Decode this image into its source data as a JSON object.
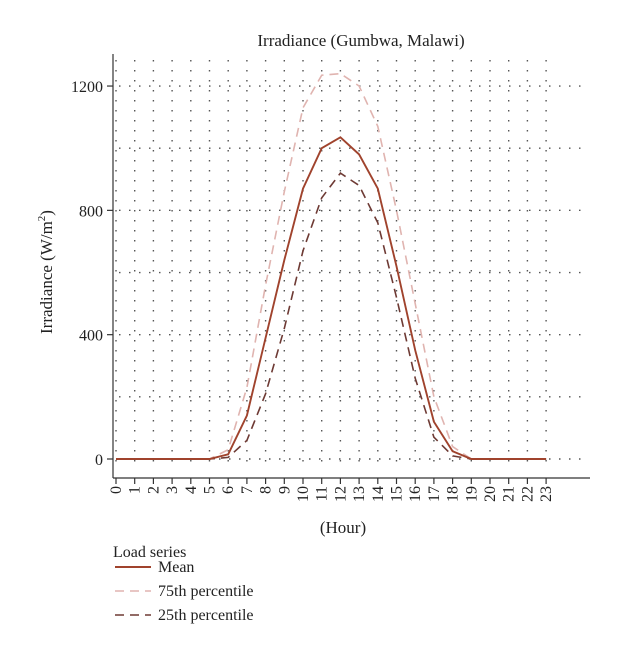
{
  "chart_data": {
    "type": "line",
    "title": "Irradiance (Gumbwa, Malawi)",
    "xlabel": "(Hour)",
    "ylabel": "Irradiance (W/m²)",
    "x": [
      0,
      1,
      2,
      3,
      4,
      5,
      6,
      7,
      8,
      9,
      10,
      11,
      12,
      13,
      14,
      15,
      16,
      17,
      18,
      19,
      20,
      21,
      22,
      23
    ],
    "xlim": [
      0,
      24
    ],
    "ylim": [
      -60,
      1330
    ],
    "yticks": [
      0,
      400,
      800,
      1200
    ],
    "minor_grid_y": [
      200,
      600,
      1000
    ],
    "grid": true,
    "legend": {
      "title": "Load series",
      "placement": "bottom-left"
    },
    "series": [
      {
        "name": "Mean",
        "style": "solid",
        "color": "#a0432d",
        "values": [
          0,
          0,
          0,
          0,
          0,
          0,
          15,
          140,
          390,
          640,
          870,
          1000,
          1035,
          980,
          870,
          620,
          350,
          120,
          25,
          0,
          0,
          0,
          0,
          0
        ]
      },
      {
        "name": "75th percentile",
        "style": "dashed",
        "color": "#e0b4b0",
        "values": [
          0,
          0,
          0,
          0,
          0,
          0,
          30,
          230,
          560,
          860,
          1130,
          1235,
          1240,
          1200,
          1070,
          800,
          500,
          200,
          40,
          0,
          0,
          0,
          0,
          0
        ]
      },
      {
        "name": "25th percentile",
        "style": "dashed",
        "color": "#6e3a34",
        "values": [
          0,
          0,
          0,
          0,
          0,
          0,
          5,
          60,
          210,
          420,
          670,
          840,
          920,
          880,
          760,
          520,
          260,
          70,
          10,
          0,
          0,
          0,
          0,
          0
        ]
      }
    ]
  }
}
